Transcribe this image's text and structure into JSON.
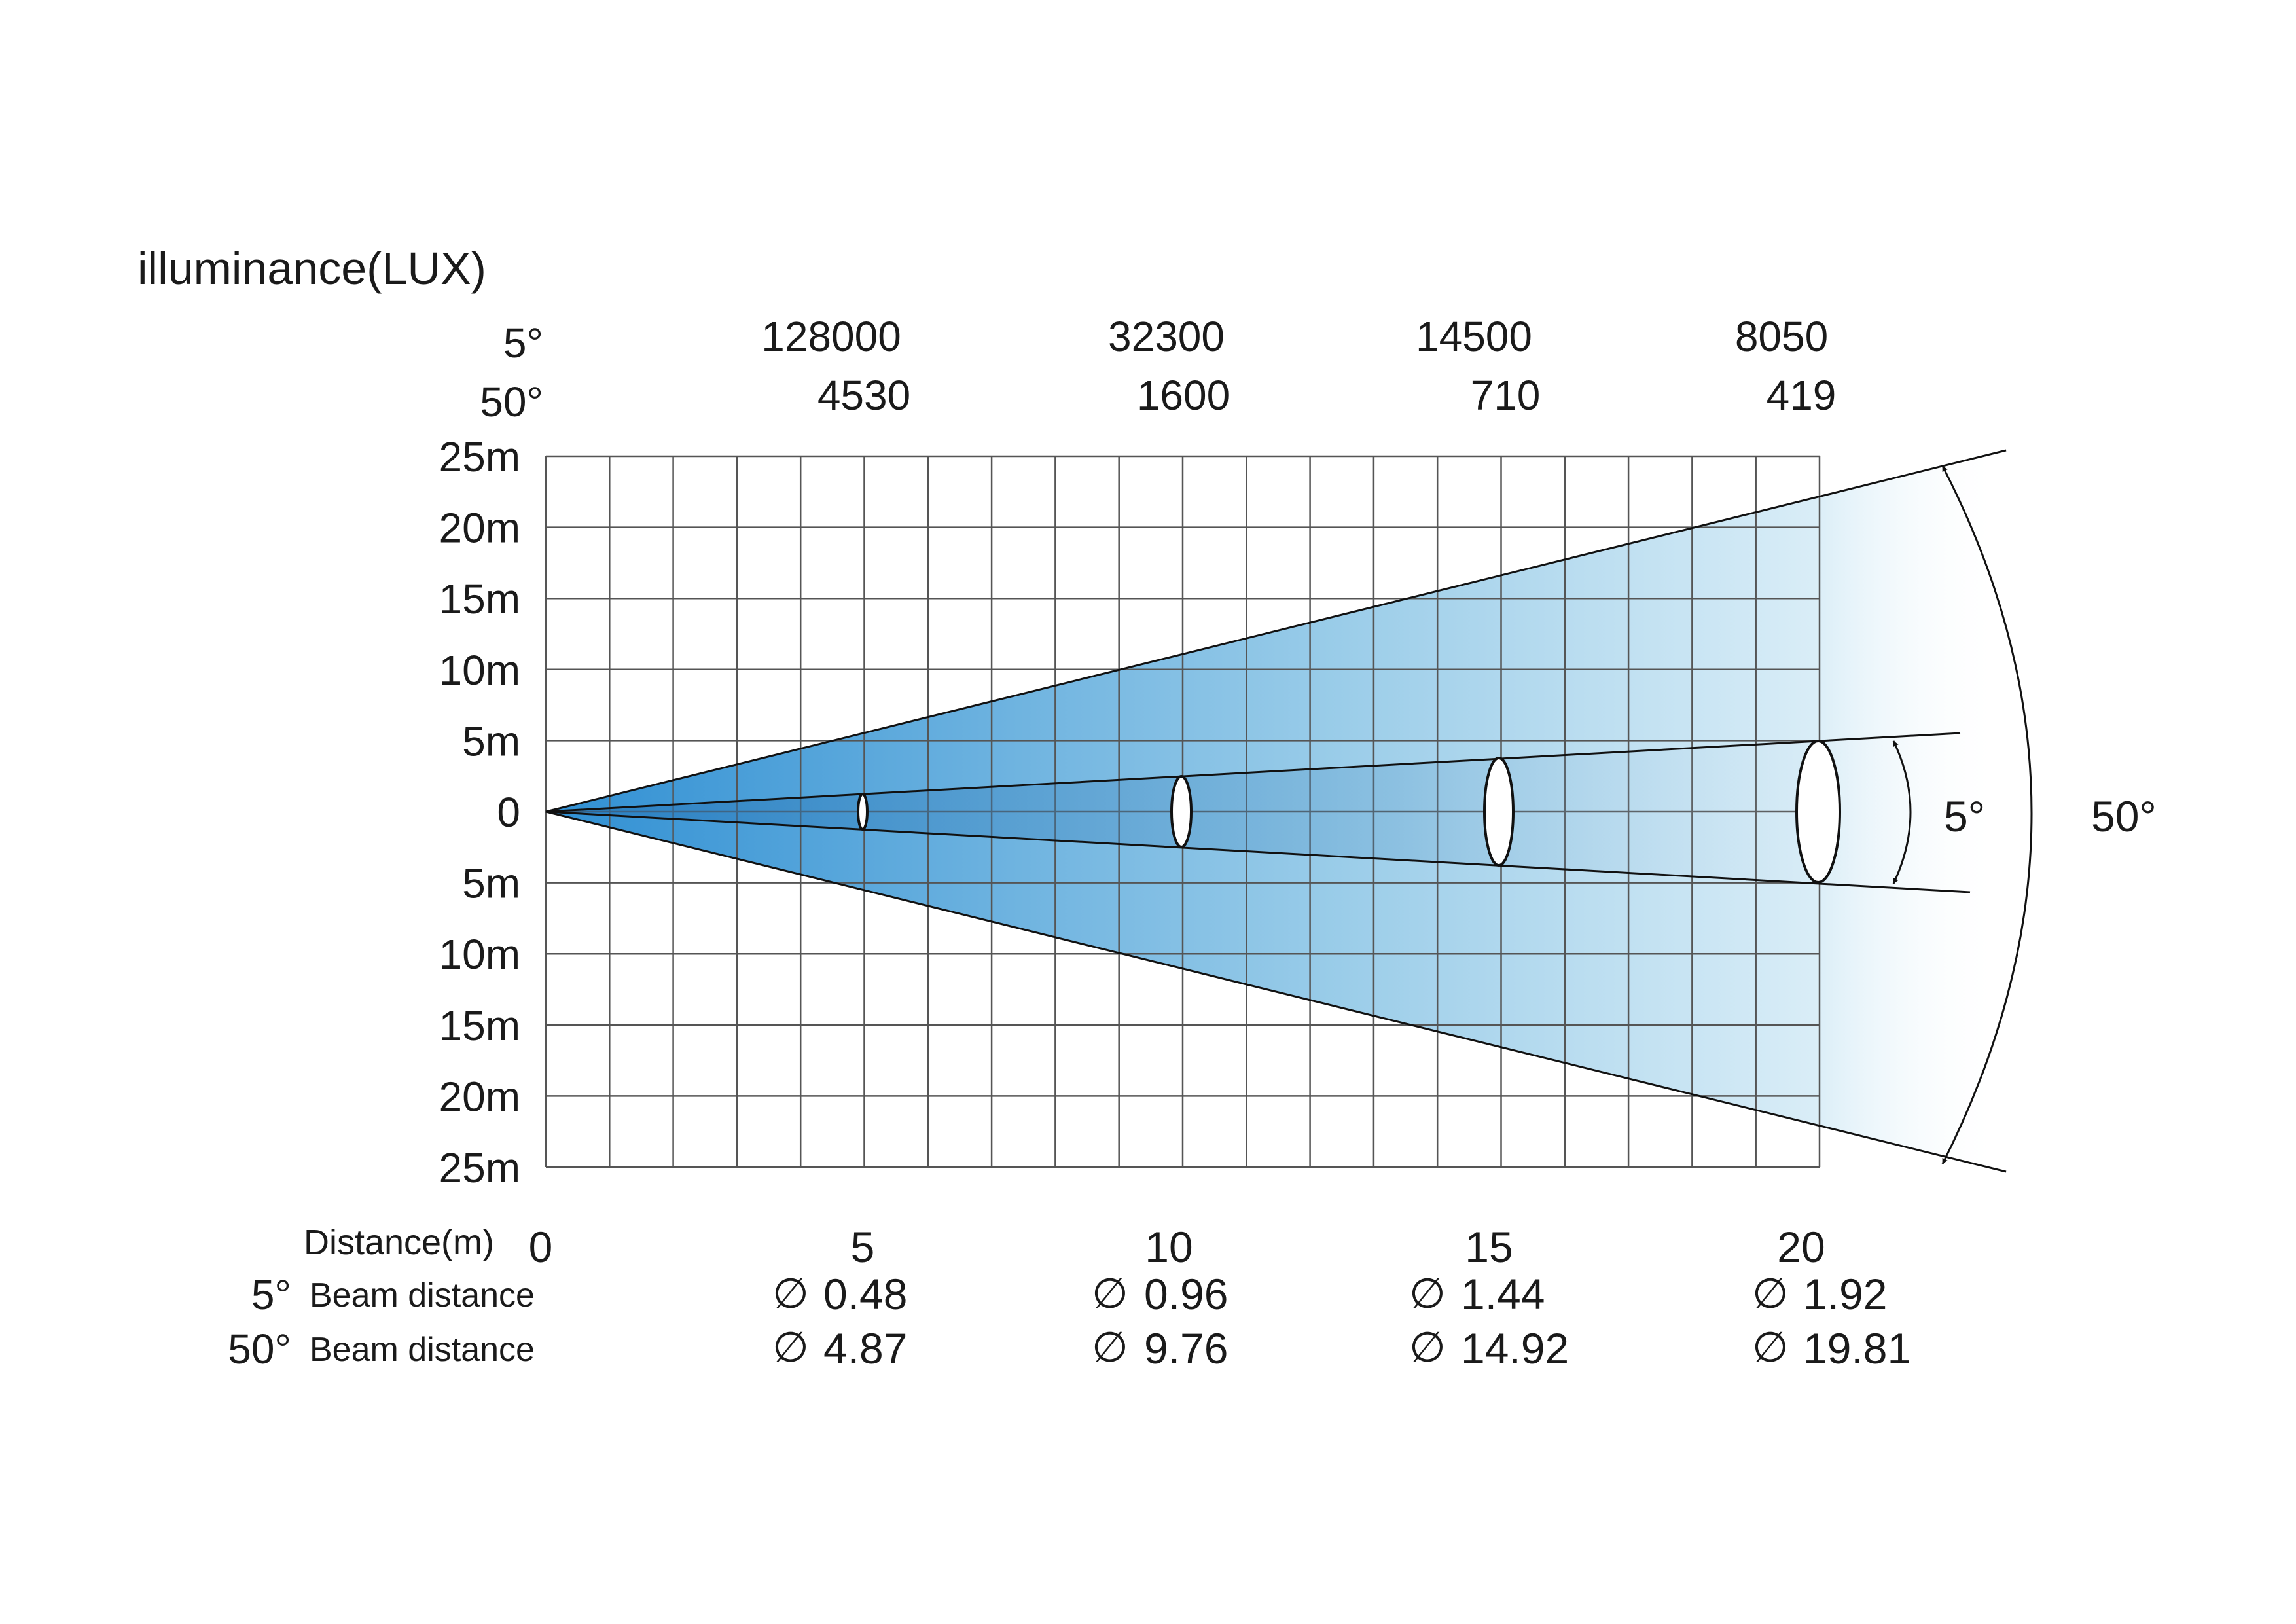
{
  "title": "illuminance(LUX)",
  "lux_rows": [
    {
      "angle_label": "5°",
      "values": [
        "128000",
        "32300",
        "14500",
        "8050"
      ]
    },
    {
      "angle_label": "50°",
      "values": [
        "4530",
        "1600",
        "710",
        "419"
      ]
    }
  ],
  "y_axis_labels": [
    "25m",
    "20m",
    "15m",
    "10m",
    "5m",
    "0",
    "5m",
    "10m",
    "15m",
    "20m",
    "25m"
  ],
  "distance_label": "Distance(m)",
  "distances": [
    "0",
    "5",
    "10",
    "15",
    "20"
  ],
  "beam_rows": [
    {
      "angle_label": "5°",
      "label": "Beam distance",
      "diameters": [
        "0.48",
        "0.96",
        "1.44",
        "1.92"
      ]
    },
    {
      "angle_label": "50°",
      "label": "Beam distance",
      "diameters": [
        "4.87",
        "9.76",
        "14.92",
        "19.81"
      ]
    }
  ],
  "diameter_symbol": "∅",
  "beam_angle_labels": {
    "narrow": "5°",
    "wide": "50°"
  },
  "colors": {
    "beam_dark": "#2f8fd3",
    "beam_light": "#d8edf8",
    "grid": "#555555",
    "line": "#111111"
  }
}
